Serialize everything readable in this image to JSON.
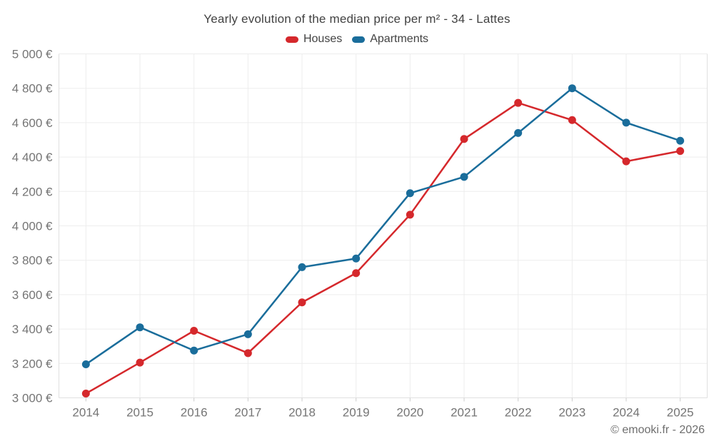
{
  "footer": {
    "copyright": "© emooki.fr - 2026"
  },
  "chart_data": {
    "type": "line",
    "title": "Yearly evolution of the median price per m² - 34 - Lattes",
    "categories": [
      "2014",
      "2015",
      "2016",
      "2017",
      "2018",
      "2019",
      "2020",
      "2021",
      "2022",
      "2023",
      "2024",
      "2025"
    ],
    "series": [
      {
        "name": "Houses",
        "color": "#d5282c",
        "values": [
          3025,
          3205,
          3390,
          3260,
          3555,
          3725,
          4065,
          4505,
          4715,
          4615,
          4375,
          4435
        ]
      },
      {
        "name": "Apartments",
        "color": "#1a6d9b",
        "values": [
          3195,
          3410,
          3275,
          3370,
          3760,
          3810,
          4190,
          4285,
          4540,
          4800,
          4600,
          4495
        ]
      }
    ],
    "ylabel": "",
    "xlabel": "",
    "ylim": [
      3000,
      5000
    ],
    "ytick_step": 200,
    "ytick_suffix": " €",
    "grid": true,
    "legend_position": "top",
    "colors": {
      "title_text": "#424242",
      "axis_label_text": "#757575",
      "gridline": "#ededed",
      "axis_line": "#e0e0e0",
      "tick_mark": "#cccccc"
    }
  }
}
